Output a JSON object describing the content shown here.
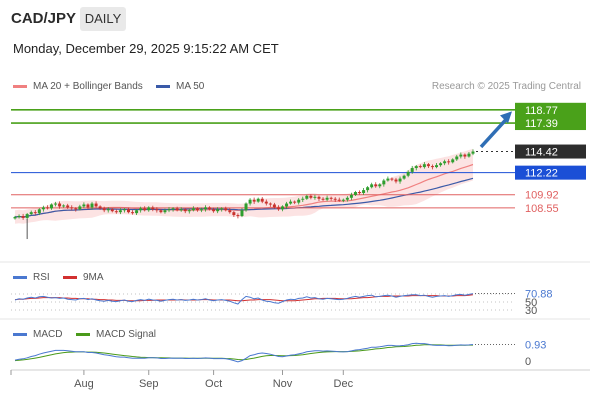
{
  "header": {
    "symbol": "CAD/JPY",
    "timeframe": "DAILY",
    "timestamp": "Monday, December 29, 2025 9:15:22 AM CET"
  },
  "credit": "Research © 2025 Trading Central",
  "legend": {
    "ma20": "MA 20 + Bollinger Bands",
    "ma50": "MA 50",
    "rsi": "RSI",
    "rsi_ma": "9MA",
    "macd": "MACD",
    "macd_signal": "MACD Signal"
  },
  "colors": {
    "bull": "#2e9e2e",
    "bear": "#c8312d",
    "ma20": "#f08080",
    "ma50": "#3a5aa8",
    "band_fill": "#fbdcdc",
    "target": "#4aa11a",
    "support": "#e06060",
    "pivot": "#1b4fd6",
    "arrow": "#2f6eb5",
    "rsi": "#4a78d0",
    "rsi_ma": "#d23030",
    "macd_signal": "#4a9a1a"
  },
  "chart_data": [
    {
      "type": "candlestick",
      "title": "",
      "x_ticks": [
        "Aug",
        "Sep",
        "Oct",
        "Nov",
        "Dec"
      ],
      "ylim": [
        105.2,
        120.0
      ],
      "levels": [
        {
          "value": 118.77,
          "label": "118.77",
          "kind": "target"
        },
        {
          "value": 117.39,
          "label": "117.39",
          "kind": "target"
        },
        {
          "value": 114.42,
          "label": "114.42",
          "kind": "last"
        },
        {
          "value": 112.22,
          "label": "112.22",
          "kind": "pivot"
        },
        {
          "value": 109.92,
          "label": "109.92",
          "kind": "support"
        },
        {
          "value": 108.55,
          "label": "108.55",
          "kind": "support"
        }
      ],
      "series_close": [
        107.6,
        107.7,
        107.5,
        107.9,
        108.1,
        108.0,
        108.4,
        108.6,
        108.5,
        108.9,
        109.0,
        108.7,
        108.8,
        108.6,
        108.5,
        108.4,
        108.7,
        108.9,
        108.6,
        109.0,
        108.7,
        108.5,
        108.3,
        108.4,
        108.2,
        108.1,
        108.3,
        108.4,
        108.1,
        108.0,
        108.3,
        108.5,
        108.3,
        108.6,
        108.4,
        108.3,
        108.1,
        108.3,
        108.4,
        108.5,
        108.3,
        108.4,
        108.2,
        108.3,
        108.5,
        108.3,
        108.4,
        108.6,
        108.4,
        108.2,
        108.4,
        108.5,
        108.3,
        108.1,
        107.8,
        107.7,
        108.3,
        109.0,
        109.4,
        109.2,
        109.5,
        109.2,
        109.0,
        108.9,
        108.6,
        108.4,
        108.7,
        109.0,
        109.2,
        109.1,
        109.4,
        109.5,
        109.8,
        109.6,
        109.7,
        109.5,
        109.4,
        109.6,
        109.5,
        109.4,
        109.3,
        109.4,
        109.6,
        109.9,
        110.2,
        110.1,
        110.4,
        110.7,
        111.0,
        110.8,
        111.0,
        111.4,
        111.6,
        111.5,
        111.3,
        111.6,
        111.9,
        112.3,
        112.7,
        112.9,
        112.8,
        113.1,
        112.9,
        112.8,
        113.0,
        113.2,
        113.4,
        113.3,
        113.6,
        113.9,
        114.1,
        113.9,
        114.2,
        114.42
      ]
    },
    {
      "type": "line",
      "title": "RSI",
      "ylim": [
        25,
        80
      ],
      "levels": [
        {
          "value": 70.88,
          "label": "70.88"
        },
        {
          "value": 50,
          "label": "50"
        },
        {
          "value": 30,
          "label": "30"
        }
      ],
      "series": [
        {
          "name": "RSI",
          "values": [
            55,
            58,
            57,
            60,
            62,
            60,
            63,
            64,
            62,
            60,
            61,
            59,
            60,
            57,
            56,
            55,
            58,
            59,
            56,
            58,
            55,
            53,
            52,
            54,
            52,
            51,
            53,
            55,
            52,
            51,
            54,
            56,
            54,
            57,
            55,
            54,
            52,
            54,
            56,
            57,
            55,
            56,
            54,
            55,
            57,
            55,
            56,
            58,
            55,
            53,
            55,
            56,
            54,
            52,
            48,
            45,
            56,
            64,
            62,
            58,
            60,
            55,
            52,
            51,
            48,
            47,
            51,
            55,
            57,
            56,
            59,
            60,
            63,
            60,
            61,
            58,
            57,
            59,
            58,
            57,
            56,
            57,
            59,
            62,
            64,
            62,
            64,
            66,
            67,
            63,
            64,
            66,
            67,
            65,
            62,
            64,
            66,
            67,
            68,
            68,
            66,
            67,
            64,
            62,
            64,
            65,
            66,
            64,
            66,
            68,
            69,
            67,
            69,
            70.88
          ]
        },
        {
          "name": "9MA",
          "values": [
            56,
            57,
            57,
            58,
            59,
            59,
            60,
            61,
            61,
            61,
            61,
            61,
            60,
            60,
            59,
            59,
            58,
            58,
            58,
            57,
            57,
            56,
            56,
            55,
            55,
            54,
            54,
            54,
            53,
            53,
            53,
            53,
            54,
            54,
            54,
            55,
            55,
            55,
            55,
            55,
            55,
            56,
            55,
            55,
            55,
            55,
            56,
            56,
            56,
            55,
            55,
            55,
            55,
            55,
            54,
            53,
            53,
            54,
            55,
            55,
            56,
            56,
            56,
            56,
            55,
            54,
            53,
            53,
            53,
            53,
            54,
            55,
            56,
            57,
            58,
            58,
            59,
            59,
            59,
            59,
            58,
            58,
            58,
            58,
            59,
            60,
            61,
            61,
            62,
            63,
            64,
            64,
            64,
            65,
            65,
            65,
            65,
            65,
            66,
            66,
            66,
            66,
            66,
            66,
            66,
            65,
            65,
            65,
            65,
            66,
            66,
            66,
            67,
            68
          ]
        }
      ]
    },
    {
      "type": "line",
      "title": "MACD",
      "ylim": [
        -0.4,
        1.3
      ],
      "levels": [
        {
          "value": 0.93,
          "label": "0.93"
        },
        {
          "value": 0,
          "label": "0"
        }
      ],
      "series": [
        {
          "name": "MACD",
          "values": [
            0.05,
            0.1,
            0.12,
            0.18,
            0.25,
            0.3,
            0.38,
            0.45,
            0.5,
            0.55,
            0.6,
            0.6,
            0.6,
            0.58,
            0.55,
            0.52,
            0.52,
            0.52,
            0.48,
            0.48,
            0.45,
            0.4,
            0.35,
            0.32,
            0.28,
            0.24,
            0.22,
            0.22,
            0.18,
            0.15,
            0.15,
            0.16,
            0.15,
            0.18,
            0.18,
            0.17,
            0.14,
            0.14,
            0.15,
            0.16,
            0.15,
            0.16,
            0.14,
            0.14,
            0.15,
            0.14,
            0.15,
            0.17,
            0.16,
            0.13,
            0.13,
            0.14,
            0.12,
            0.08,
            0.02,
            -0.05,
            0.02,
            0.15,
            0.3,
            0.35,
            0.42,
            0.45,
            0.42,
            0.38,
            0.32,
            0.25,
            0.24,
            0.28,
            0.33,
            0.35,
            0.4,
            0.45,
            0.52,
            0.55,
            0.58,
            0.58,
            0.56,
            0.57,
            0.56,
            0.54,
            0.52,
            0.51,
            0.53,
            0.57,
            0.62,
            0.64,
            0.68,
            0.72,
            0.78,
            0.78,
            0.8,
            0.84,
            0.88,
            0.88,
            0.85,
            0.86,
            0.88,
            0.92,
            0.98,
            1.0,
            0.98,
            0.98,
            0.95,
            0.9,
            0.88,
            0.88,
            0.88,
            0.86,
            0.87,
            0.89,
            0.91,
            0.9,
            0.91,
            0.93
          ]
        },
        {
          "name": "MACD Signal",
          "values": [
            0.02,
            0.04,
            0.06,
            0.09,
            0.12,
            0.16,
            0.2,
            0.25,
            0.3,
            0.35,
            0.4,
            0.44,
            0.47,
            0.49,
            0.5,
            0.51,
            0.51,
            0.51,
            0.5,
            0.5,
            0.49,
            0.47,
            0.45,
            0.42,
            0.39,
            0.36,
            0.33,
            0.3,
            0.28,
            0.25,
            0.23,
            0.21,
            0.2,
            0.19,
            0.19,
            0.18,
            0.18,
            0.17,
            0.17,
            0.16,
            0.16,
            0.16,
            0.16,
            0.15,
            0.15,
            0.15,
            0.15,
            0.15,
            0.15,
            0.15,
            0.15,
            0.15,
            0.14,
            0.13,
            0.11,
            0.08,
            0.07,
            0.08,
            0.12,
            0.16,
            0.21,
            0.26,
            0.29,
            0.31,
            0.31,
            0.3,
            0.29,
            0.29,
            0.3,
            0.31,
            0.33,
            0.35,
            0.39,
            0.42,
            0.45,
            0.48,
            0.5,
            0.51,
            0.52,
            0.53,
            0.53,
            0.53,
            0.53,
            0.54,
            0.56,
            0.57,
            0.6,
            0.62,
            0.65,
            0.68,
            0.7,
            0.73,
            0.76,
            0.78,
            0.8,
            0.81,
            0.82,
            0.84,
            0.86,
            0.89,
            0.9,
            0.92,
            0.92,
            0.92,
            0.91,
            0.91,
            0.9,
            0.89,
            0.89,
            0.89,
            0.89,
            0.89,
            0.9,
            0.9
          ]
        }
      ]
    }
  ]
}
